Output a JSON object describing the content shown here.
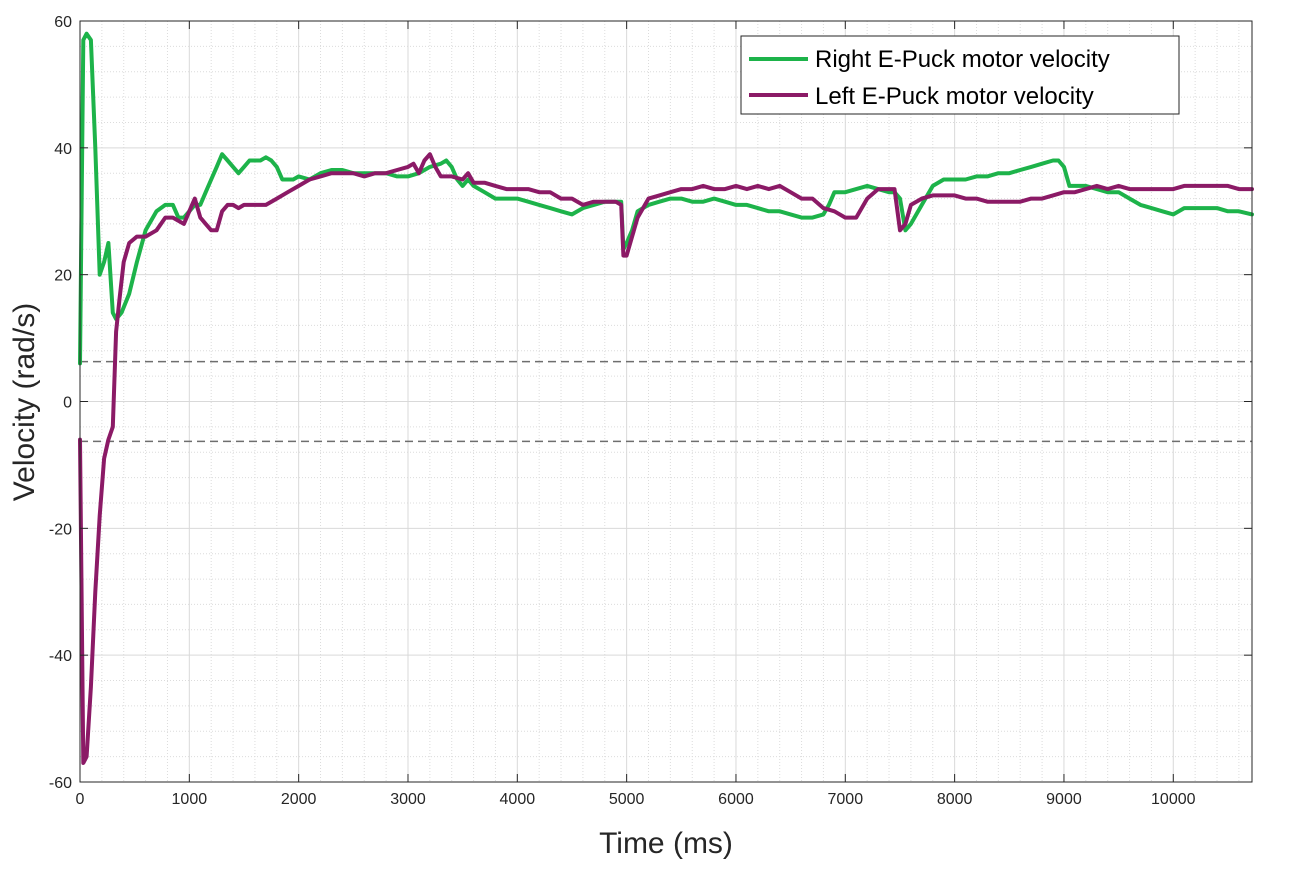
{
  "chart_data": {
    "type": "line",
    "xlabel": "Time (ms)",
    "ylabel": "Velocity (rad/s)",
    "xlim": [
      0,
      10720
    ],
    "ylim": [
      -60,
      60
    ],
    "xticks": [
      0,
      1000,
      2000,
      3000,
      4000,
      5000,
      6000,
      7000,
      8000,
      9000,
      10000
    ],
    "yticks": [
      -60,
      -40,
      -20,
      0,
      20,
      40,
      60
    ],
    "xtick_labels": [
      "0",
      "1000",
      "2000",
      "3000",
      "4000",
      "5000",
      "6000",
      "7000",
      "8000",
      "9000",
      "10000"
    ],
    "ytick_labels": [
      "-60",
      "-40",
      "-20",
      "0",
      "20",
      "40",
      "60"
    ],
    "grid": true,
    "minor_grid": true,
    "legend_position": "top-right",
    "reference_lines": [
      {
        "y": 6.28,
        "style": "dashed"
      },
      {
        "y": -6.28,
        "style": "dashed"
      }
    ],
    "series": [
      {
        "name": "Right E-Puck motor velocity",
        "color": "#1db34a",
        "x": [
          0,
          30,
          60,
          100,
          140,
          180,
          220,
          260,
          300,
          330,
          380,
          450,
          520,
          600,
          700,
          780,
          850,
          900,
          950,
          1000,
          1050,
          1100,
          1150,
          1200,
          1250,
          1300,
          1350,
          1400,
          1450,
          1500,
          1550,
          1600,
          1650,
          1700,
          1750,
          1800,
          1850,
          1900,
          1950,
          2000,
          2100,
          2200,
          2300,
          2400,
          2500,
          2600,
          2700,
          2800,
          2900,
          3000,
          3100,
          3200,
          3300,
          3350,
          3400,
          3450,
          3500,
          3550,
          3600,
          3700,
          3800,
          3900,
          4000,
          4100,
          4200,
          4300,
          4400,
          4500,
          4600,
          4700,
          4800,
          4900,
          4950,
          4970,
          5000,
          5050,
          5100,
          5200,
          5300,
          5400,
          5500,
          5600,
          5700,
          5800,
          5900,
          6000,
          6100,
          6200,
          6300,
          6400,
          6500,
          6600,
          6700,
          6800,
          6850,
          6900,
          7000,
          7100,
          7200,
          7300,
          7400,
          7450,
          7500,
          7550,
          7600,
          7700,
          7800,
          7900,
          8000,
          8100,
          8200,
          8300,
          8400,
          8500,
          8600,
          8700,
          8800,
          8900,
          8950,
          9000,
          9050,
          9100,
          9200,
          9300,
          9400,
          9500,
          9600,
          9700,
          9800,
          9900,
          10000,
          10050,
          10100,
          10200,
          10300,
          10400,
          10500,
          10600,
          10720
        ],
        "y": [
          6,
          57,
          58,
          57,
          40,
          20,
          22,
          25,
          14,
          13,
          14,
          17,
          22,
          27,
          30,
          31,
          31,
          29,
          29,
          30,
          31,
          31,
          33,
          35,
          37,
          39,
          38,
          37,
          36,
          37,
          38,
          38,
          38,
          38.5,
          38,
          37,
          35,
          35,
          35,
          35.5,
          35,
          36,
          36.5,
          36.5,
          36,
          36,
          36,
          36,
          35.5,
          35.5,
          36,
          37,
          37.5,
          38,
          37,
          35,
          34,
          35,
          34,
          33,
          32,
          32,
          32,
          31.5,
          31,
          30.5,
          30,
          29.5,
          30.5,
          31,
          31.5,
          31.5,
          31.5,
          24,
          25,
          27,
          30,
          31,
          31.5,
          32,
          32,
          31.5,
          31.5,
          32,
          31.5,
          31,
          31,
          30.5,
          30,
          30,
          29.5,
          29,
          29,
          29.5,
          31,
          33,
          33,
          33.5,
          34,
          33.5,
          33,
          33,
          32,
          27,
          28,
          31,
          34,
          35,
          35,
          35,
          35.5,
          35.5,
          36,
          36,
          36.5,
          37,
          37.5,
          38,
          38,
          37,
          34,
          34,
          34,
          33.5,
          33,
          33,
          32,
          31,
          30.5,
          30,
          29.5,
          30,
          30.5,
          30.5,
          30.5,
          30.5,
          30,
          30,
          29.5
        ]
      },
      {
        "name": "Left E-Puck motor velocity",
        "color": "#8b1a66",
        "x": [
          0,
          30,
          60,
          100,
          140,
          180,
          220,
          260,
          300,
          330,
          360,
          400,
          450,
          520,
          600,
          700,
          780,
          850,
          900,
          950,
          1000,
          1050,
          1100,
          1150,
          1200,
          1250,
          1300,
          1350,
          1400,
          1450,
          1500,
          1550,
          1600,
          1700,
          1800,
          1900,
          2000,
          2100,
          2200,
          2300,
          2400,
          2500,
          2600,
          2700,
          2800,
          2900,
          3000,
          3050,
          3100,
          3150,
          3200,
          3250,
          3300,
          3400,
          3500,
          3550,
          3600,
          3700,
          3800,
          3900,
          4000,
          4100,
          4200,
          4300,
          4400,
          4500,
          4600,
          4700,
          4800,
          4900,
          4950,
          4970,
          5000,
          5050,
          5100,
          5200,
          5300,
          5400,
          5500,
          5600,
          5700,
          5800,
          5900,
          6000,
          6100,
          6200,
          6300,
          6400,
          6500,
          6600,
          6700,
          6800,
          6900,
          7000,
          7100,
          7200,
          7300,
          7400,
          7450,
          7500,
          7550,
          7600,
          7700,
          7800,
          7900,
          8000,
          8100,
          8200,
          8300,
          8400,
          8500,
          8600,
          8700,
          8800,
          8900,
          9000,
          9100,
          9200,
          9300,
          9400,
          9500,
          9600,
          9700,
          9800,
          9900,
          10000,
          10100,
          10200,
          10300,
          10400,
          10500,
          10600,
          10720
        ],
        "y": [
          -6,
          -57,
          -56,
          -45,
          -30,
          -18,
          -9,
          -6,
          -4,
          11,
          16,
          22,
          25,
          26,
          26,
          27,
          29,
          29,
          28.5,
          28,
          30,
          32,
          29,
          28,
          27,
          27,
          30,
          31,
          31,
          30.5,
          31,
          31,
          31,
          31,
          32,
          33,
          34,
          35,
          35.5,
          36,
          36,
          36,
          35.5,
          36,
          36,
          36.5,
          37,
          37.5,
          36,
          38,
          39,
          37,
          35.5,
          35.5,
          35,
          36,
          34.5,
          34.5,
          34,
          33.5,
          33.5,
          33.5,
          33,
          33,
          32,
          32,
          31,
          31.5,
          31.5,
          31.5,
          31,
          23,
          23,
          26,
          29,
          32,
          32.5,
          33,
          33.5,
          33.5,
          34,
          33.5,
          33.5,
          34,
          33.5,
          34,
          33.5,
          34,
          33,
          32,
          32,
          30.5,
          30,
          29,
          29,
          32,
          33.5,
          33.5,
          33.5,
          27,
          28,
          31,
          32,
          32.5,
          32.5,
          32.5,
          32,
          32,
          31.5,
          31.5,
          31.5,
          31.5,
          32,
          32,
          32.5,
          33,
          33,
          33.5,
          34,
          33.5,
          34,
          33.5,
          33.5,
          33.5,
          33.5,
          33.5,
          34,
          34,
          34,
          34,
          34,
          33.5,
          33.5
        ]
      }
    ]
  }
}
